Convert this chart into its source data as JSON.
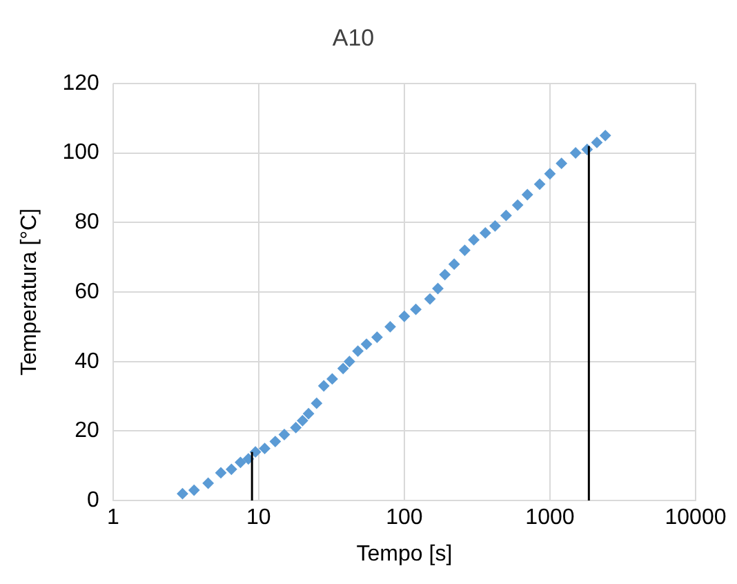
{
  "chart_data": {
    "type": "scatter",
    "title": "A10",
    "xlabel": "Tempo [s]",
    "ylabel": "Temperatura [°C]",
    "log": "x",
    "xlim": [
      1,
      10000
    ],
    "xticks": [
      1,
      10,
      100,
      1000,
      10000
    ],
    "ylim": [
      0,
      120
    ],
    "yticks": [
      0,
      20,
      40,
      60,
      80,
      100,
      120
    ],
    "grid": true,
    "legend": false,
    "series": [
      {
        "marker": "diamond",
        "color": "#5b9bd5",
        "x": [
          3,
          3.6,
          4.5,
          5.5,
          6.5,
          7.5,
          8.5,
          9.5,
          11,
          13,
          15,
          18,
          20,
          22,
          25,
          28,
          32,
          38,
          42,
          48,
          55,
          65,
          80,
          100,
          120,
          150,
          170,
          190,
          220,
          260,
          300,
          360,
          420,
          500,
          600,
          700,
          850,
          1000,
          1200,
          1500,
          1800,
          2100,
          2400
        ],
        "values": [
          2,
          3,
          5,
          8,
          9,
          11,
          12,
          14,
          15,
          17,
          19,
          21,
          23,
          25,
          28,
          33,
          35,
          38,
          40,
          43,
          45,
          47,
          50,
          53,
          55,
          58,
          61,
          65,
          68,
          72,
          75,
          77,
          79,
          82,
          85,
          88,
          91,
          94,
          97,
          100,
          101,
          103,
          105
        ]
      },
      {
        "type": "line",
        "marker": "none",
        "color": "#000000",
        "x": [
          9,
          9
        ],
        "values": [
          0,
          14
        ]
      },
      {
        "type": "line",
        "marker": "none",
        "color": "#000000",
        "x": [
          1850,
          1850
        ],
        "values": [
          0,
          102
        ]
      }
    ]
  }
}
